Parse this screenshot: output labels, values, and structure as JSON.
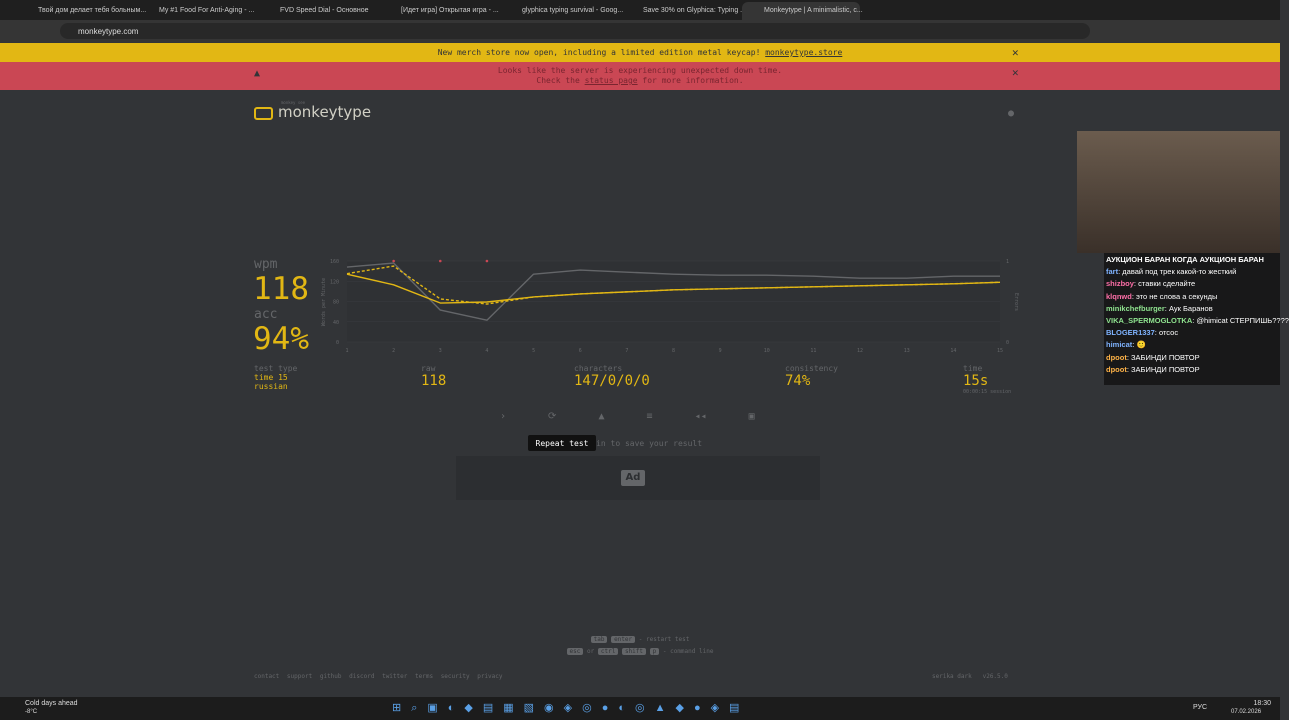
{
  "browser": {
    "tabs": [
      "Твой дом делает тебя больным...",
      "My #1 Food For Anti-Aging - ...",
      "FVD Speed Dial - Основное",
      "[Идет игра] Открытая игра - ...",
      "glyphica typing survival - Goog...",
      "Save 30% on Glyphica: Typing ...",
      "Monkeytype | A minimalistic, c..."
    ],
    "url": "monkeytype.com"
  },
  "banners": {
    "merch": {
      "text": "New merch store now open, including a limited edition metal keycap!",
      "link": "monkeytype.store"
    },
    "server": {
      "line1": "Looks like the server is experiencing unexpected down time.",
      "before": "Check the",
      "link": "status page",
      "after": "for more information."
    }
  },
  "header": {
    "tagline": "monkey see",
    "logo": "monkeytype"
  },
  "result": {
    "wpm_label": "wpm",
    "wpm": "118",
    "acc_label": "acc",
    "acc": "94%",
    "chart": {
      "type": "line",
      "y_title": "Words per Minute",
      "y2_title": "Errors",
      "x": [
        1,
        2,
        3,
        4,
        5,
        6,
        7,
        8,
        9,
        10,
        11,
        12,
        13,
        14,
        15
      ],
      "xlim": [
        1,
        15
      ],
      "ylim": [
        0,
        160
      ],
      "yticks": [
        0,
        40,
        80,
        120,
        160
      ],
      "y2lim": [
        0,
        1
      ],
      "y2ticks": [
        0,
        1
      ],
      "series": [
        {
          "color": "#646669",
          "values": [
            148,
            156,
            63,
            43,
            134,
            142,
            138,
            134,
            132,
            132,
            130,
            126,
            126,
            130,
            130
          ]
        },
        {
          "color": "#e2b714",
          "dash": true,
          "values": [
            135,
            150,
            85,
            75,
            89,
            95,
            99,
            103,
            105,
            107,
            109,
            111,
            113,
            115,
            118
          ]
        },
        {
          "color": "#e2b714",
          "values": [
            134,
            113,
            77,
            79,
            89,
            95,
            99,
            103,
            105,
            107,
            109,
            111,
            113,
            115,
            118
          ]
        },
        {
          "color": "#ca4754",
          "axis": "y2",
          "marker": "dot",
          "values": [
            null,
            1,
            1,
            1,
            null,
            null,
            null,
            null,
            null,
            null,
            null,
            null,
            null,
            null,
            null
          ]
        }
      ]
    },
    "stats": [
      {
        "label": "test type",
        "values": [
          "time 15",
          "russian"
        ]
      },
      {
        "label": "raw",
        "values": [
          "118"
        ]
      },
      {
        "label": "characters",
        "values": [
          "147/0/0/0"
        ]
      },
      {
        "label": "consistency",
        "values": [
          "74%"
        ]
      },
      {
        "label": "time",
        "values": [
          "15s",
          "00:00:15 session"
        ]
      }
    ],
    "tooltip": "Repeat test",
    "sign_in": "Sign in to save your result",
    "ad": "Ad"
  },
  "hints": {
    "restart": [
      "tab",
      "enter",
      "- restart test"
    ],
    "command": [
      "esc",
      "or",
      "ctrl",
      "shift",
      "p",
      "- command line"
    ]
  },
  "footer": {
    "links": [
      "contact",
      "support",
      "github",
      "discord",
      "twitter",
      "terms",
      "security",
      "privacy"
    ],
    "theme": "serika dark",
    "version": "v26.5.0"
  },
  "chat": {
    "title": "АУКЦИОН БАРАН КОГДА АУКЦИОН БАРАН",
    "messages": [
      {
        "user": "fart",
        "color": "#7fb3ff",
        "text": "давай под трек какой-то жесткий"
      },
      {
        "user": "shizboy",
        "color": "#ff6fa8",
        "text": "ставки сделайте"
      },
      {
        "user": "klqnwd",
        "color": "#ff6fa8",
        "text": "это не слова а секунды"
      },
      {
        "user": "minikchefburger",
        "color": "#8fe38f",
        "text": "Аук Баранов"
      },
      {
        "user": "VIKA_SPERMOGLOTKA",
        "color": "#8fe38f",
        "text": "@himicat СТЕРПИШЬ????"
      },
      {
        "user": "BLOGER1337",
        "color": "#7fb3ff",
        "text": "отсос"
      },
      {
        "user": "himicat",
        "color": "#7fb3ff",
        "text": "🙂"
      },
      {
        "user": "dpoot",
        "color": "#ffb347",
        "text": "ЗАБИНДИ ПОВТОР"
      },
      {
        "user": "dpoot",
        "color": "#ffb347",
        "text": "ЗАБИНДИ ПОВТОР"
      }
    ]
  },
  "taskbar": {
    "weather": "Cold days ahead",
    "temp": "-8°C",
    "lang": "РУС",
    "time": "18:30",
    "date": "07.02.2026"
  }
}
